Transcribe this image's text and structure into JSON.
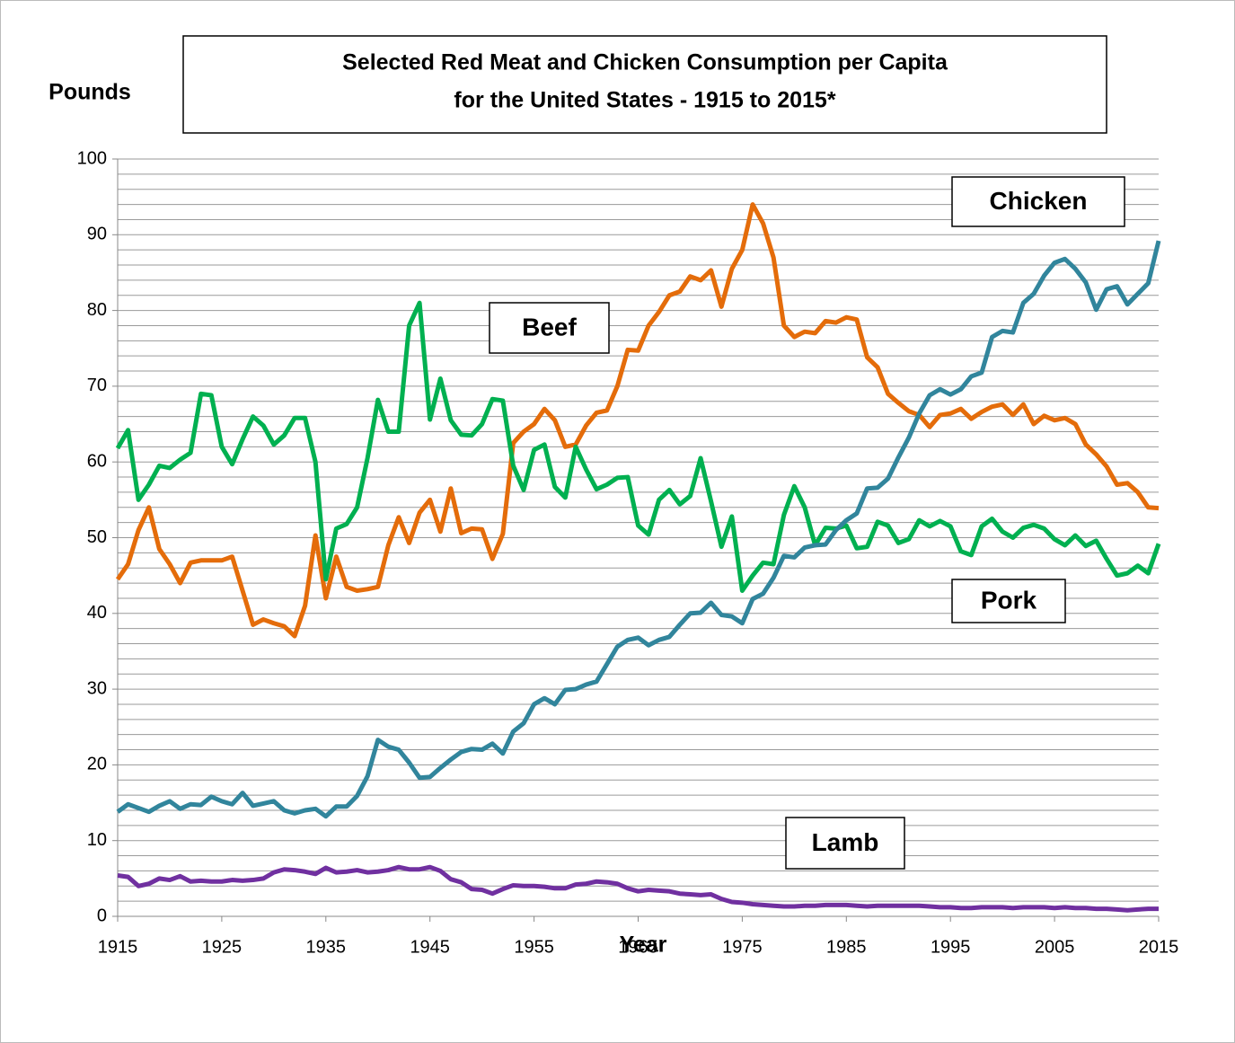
{
  "chart_data": {
    "type": "line",
    "title": [
      "Selected Red Meat and Chicken Consumption per Capita",
      "for the United States - 1915 to 2015*"
    ],
    "ylabel": "Pounds",
    "xlabel": "Year",
    "x": [
      1915,
      1916,
      1917,
      1918,
      1919,
      1920,
      1921,
      1922,
      1923,
      1924,
      1925,
      1926,
      1927,
      1928,
      1929,
      1930,
      1931,
      1932,
      1933,
      1934,
      1935,
      1936,
      1937,
      1938,
      1939,
      1940,
      1941,
      1942,
      1943,
      1944,
      1945,
      1946,
      1947,
      1948,
      1949,
      1950,
      1951,
      1952,
      1953,
      1954,
      1955,
      1956,
      1957,
      1958,
      1959,
      1960,
      1961,
      1962,
      1963,
      1964,
      1965,
      1966,
      1967,
      1968,
      1969,
      1970,
      1971,
      1972,
      1973,
      1974,
      1975,
      1976,
      1977,
      1978,
      1979,
      1980,
      1981,
      1982,
      1983,
      1984,
      1985,
      1986,
      1987,
      1988,
      1989,
      1990,
      1991,
      1992,
      1993,
      1994,
      1995,
      1996,
      1997,
      1998,
      1999,
      2000,
      2001,
      2002,
      2003,
      2004,
      2005,
      2006,
      2007,
      2008,
      2009,
      2010,
      2011,
      2012,
      2013,
      2014,
      2015
    ],
    "xlim": [
      1915,
      2015
    ],
    "xticks": [
      1915,
      1925,
      1935,
      1945,
      1955,
      1965,
      1975,
      1985,
      1995,
      2005,
      2015
    ],
    "ylim": [
      0,
      100
    ],
    "yticks": [
      0,
      10,
      20,
      30,
      40,
      50,
      60,
      70,
      80,
      90,
      100
    ],
    "ygrid": [
      2,
      4,
      6,
      8,
      10,
      12,
      14,
      16,
      18,
      20,
      22,
      24,
      26,
      28,
      30,
      32,
      34,
      36,
      38,
      40,
      42,
      44,
      46,
      48,
      50,
      52,
      54,
      56,
      58,
      60,
      62,
      64,
      66,
      68,
      70,
      72,
      74,
      76,
      78,
      80,
      82,
      84,
      86,
      88,
      90,
      92,
      94,
      96,
      98,
      100
    ],
    "series": [
      {
        "name": "Beef",
        "color": "#e46c0a",
        "values": [
          44.5,
          46.5,
          51,
          54,
          48.5,
          46.5,
          44,
          46.7,
          47,
          47,
          47,
          47.5,
          43,
          38.5,
          39.2,
          38.7,
          38.3,
          37,
          41,
          50.3,
          42,
          47.5,
          43.5,
          43,
          43.2,
          43.5,
          49,
          52.7,
          49.3,
          53.3,
          55,
          50.8,
          56.5,
          50.6,
          51.2,
          51.1,
          47.2,
          50.5,
          62.5,
          64,
          65,
          67,
          65.5,
          62,
          62.3,
          64.8,
          66.5,
          66.8,
          70,
          74.8,
          74.7,
          78,
          79.8,
          82,
          82.5,
          84.5,
          84,
          85.3,
          80.5,
          85.5,
          88,
          94,
          91.5,
          87,
          78,
          76.5,
          77.2,
          77,
          78.6,
          78.4,
          79.1,
          78.8,
          73.8,
          72.5,
          69,
          67.8,
          66.7,
          66.2,
          64.6,
          66.2,
          66.4,
          67,
          65.7,
          66.6,
          67.3,
          67.6,
          66.2,
          67.6,
          65,
          66.1,
          65.5,
          65.8,
          65,
          62.3,
          61,
          59.4,
          57,
          57.2,
          56,
          54,
          53.9
        ]
      },
      {
        "name": "Pork",
        "color": "#00b050",
        "values": [
          61.8,
          64.2,
          55,
          57,
          59.5,
          59.2,
          60.3,
          61.2,
          69,
          68.8,
          62,
          59.7,
          63,
          66,
          64.8,
          62.3,
          63.5,
          65.8,
          65.8,
          60,
          44.5,
          51.2,
          51.8,
          54,
          60.5,
          68.2,
          64,
          64,
          78,
          81,
          65.6,
          71,
          65.5,
          63.6,
          63.5,
          65,
          68.3,
          68.1,
          59.5,
          56.3,
          61.6,
          62.3,
          56.7,
          55.3,
          62,
          59,
          56.4,
          57,
          57.9,
          58,
          51.6,
          50.4,
          55,
          56.3,
          54.4,
          55.5,
          60.5,
          54.8,
          48.8,
          52.8,
          43,
          45,
          46.7,
          46.5,
          53,
          56.8,
          54,
          49,
          51.3,
          51.2,
          51.6,
          48.6,
          48.8,
          52.1,
          51.6,
          49.3,
          49.8,
          52.3,
          51.5,
          52.2,
          51.5,
          48.2,
          47.7,
          51.5,
          52.5,
          50.8,
          50,
          51.3,
          51.7,
          51.2,
          49.8,
          49,
          50.3,
          48.9,
          49.6,
          47.2,
          45,
          45.3,
          46.3,
          45.3,
          49.2
        ]
      },
      {
        "name": "Chicken",
        "color": "#31859c",
        "values": [
          13.8,
          14.8,
          14.3,
          13.8,
          14.6,
          15.2,
          14.2,
          14.8,
          14.7,
          15.8,
          15.2,
          14.8,
          16.3,
          14.6,
          14.9,
          15.2,
          14,
          13.6,
          14,
          14.2,
          13.2,
          14.5,
          14.5,
          15.9,
          18.5,
          23.3,
          22.4,
          22,
          20.3,
          18.3,
          18.4,
          19.6,
          20.7,
          21.7,
          22.1,
          22,
          22.8,
          21.5,
          24.4,
          25.5,
          28,
          28.8,
          28,
          29.9,
          30,
          30.6,
          31,
          33.3,
          35.6,
          36.5,
          36.8,
          35.8,
          36.5,
          36.9,
          38.5,
          40,
          40.1,
          41.4,
          39.8,
          39.6,
          38.7,
          41.9,
          42.6,
          44.7,
          47.6,
          47.4,
          48.7,
          49,
          49.1,
          51,
          52.3,
          53.2,
          56.5,
          56.6,
          57.8,
          60.6,
          63.2,
          66.4,
          68.8,
          69.6,
          68.9,
          69.6,
          71.3,
          71.8,
          76.5,
          77.3,
          77.1,
          81,
          82.2,
          84.6,
          86.3,
          86.8,
          85.5,
          83.7,
          80.1,
          82.8,
          83.2,
          80.8,
          82.2,
          83.6,
          89.2
        ]
      },
      {
        "name": "Lamb",
        "color": "#7030a0",
        "values": [
          5.4,
          5.2,
          4,
          4.3,
          5,
          4.8,
          5.3,
          4.6,
          4.7,
          4.6,
          4.6,
          4.8,
          4.7,
          4.8,
          5,
          5.8,
          6.2,
          6.1,
          5.9,
          5.6,
          6.4,
          5.8,
          5.9,
          6.1,
          5.8,
          5.9,
          6.1,
          6.5,
          6.2,
          6.2,
          6.5,
          6,
          4.9,
          4.5,
          3.6,
          3.5,
          3,
          3.6,
          4.1,
          4,
          4,
          3.9,
          3.7,
          3.7,
          4.2,
          4.3,
          4.6,
          4.5,
          4.3,
          3.7,
          3.3,
          3.5,
          3.4,
          3.3,
          3,
          2.9,
          2.8,
          2.9,
          2.3,
          1.9,
          1.8,
          1.6,
          1.5,
          1.4,
          1.3,
          1.3,
          1.4,
          1.4,
          1.5,
          1.5,
          1.5,
          1.4,
          1.3,
          1.4,
          1.4,
          1.4,
          1.4,
          1.4,
          1.3,
          1.2,
          1.2,
          1.1,
          1.1,
          1.2,
          1.2,
          1.2,
          1.1,
          1.2,
          1.2,
          1.2,
          1.1,
          1.2,
          1.1,
          1.1,
          1,
          1,
          0.9,
          0.8,
          0.9,
          1,
          1
        ]
      }
    ]
  }
}
